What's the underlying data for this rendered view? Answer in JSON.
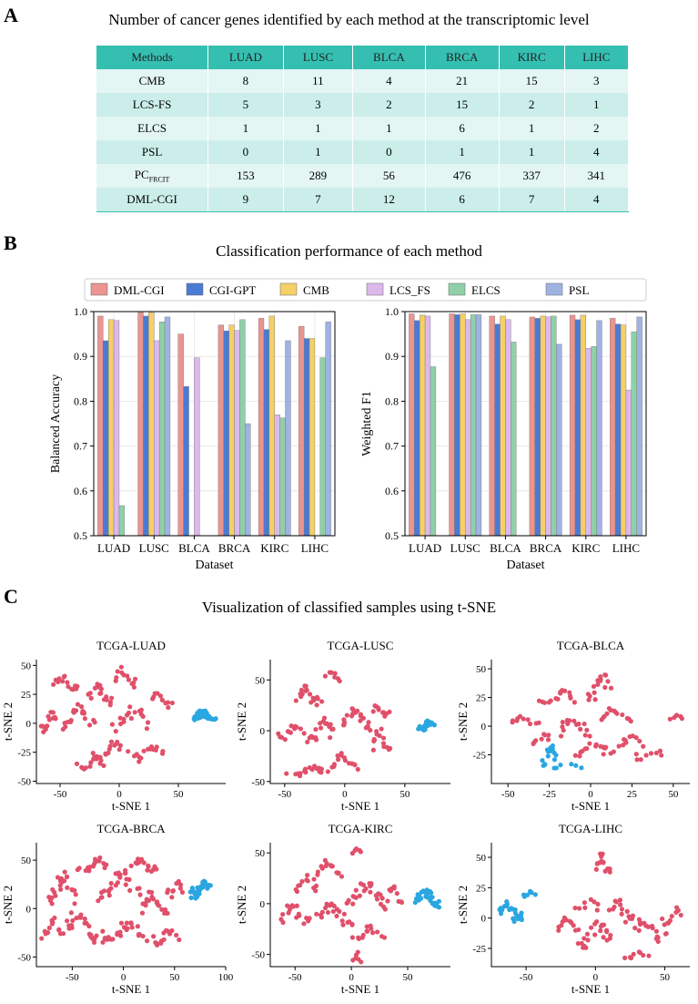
{
  "panels": {
    "a": "A",
    "b": "B",
    "c": "C"
  },
  "table": {
    "title": "Number of cancer genes identified by each method at the transcriptomic level",
    "headers": [
      "Methods",
      "LUAD",
      "LUSC",
      "BLCA",
      "BRCA",
      "KIRC",
      "LIHC"
    ],
    "rows": [
      {
        "method": "CMB",
        "values": [
          "8",
          "11",
          "4",
          "21",
          "15",
          "3"
        ]
      },
      {
        "method": "LCS-FS",
        "values": [
          "5",
          "3",
          "2",
          "15",
          "2",
          "1"
        ]
      },
      {
        "method": "ELCS",
        "values": [
          "1",
          "1",
          "1",
          "6",
          "1",
          "2"
        ]
      },
      {
        "method": "PSL",
        "values": [
          "0",
          "1",
          "0",
          "1",
          "1",
          "4"
        ]
      },
      {
        "method": "PC",
        "method_sub": "FRCIT",
        "values": [
          "153",
          "289",
          "56",
          "476",
          "337",
          "341"
        ]
      },
      {
        "method": "DML-CGI",
        "values": [
          "9",
          "7",
          "12",
          "6",
          "7",
          "4"
        ]
      }
    ]
  },
  "chart_data": [
    {
      "type": "bar",
      "title": "Classification performance of each method",
      "xlabel": "Dataset",
      "ylabel": "Balanced Accuracy",
      "ylim": [
        0.5,
        1.0
      ],
      "yticks": [
        "0.5",
        "0.6",
        "0.7",
        "0.8",
        "0.9",
        "1.0"
      ],
      "categories": [
        "LUAD",
        "LUSC",
        "BLCA",
        "BRCA",
        "KIRC",
        "LIHC"
      ],
      "legend_position": "top",
      "series": [
        {
          "name": "DML-CGI",
          "color": "#eb9490",
          "values": [
            0.99,
            0.998,
            0.95,
            0.97,
            0.985,
            0.967
          ]
        },
        {
          "name": "CGI-GPT",
          "color": "#4a7bd4",
          "values": [
            0.935,
            0.99,
            0.833,
            0.957,
            0.96,
            0.94
          ]
        },
        {
          "name": "CMB",
          "color": "#f5cf68",
          "values": [
            0.982,
            0.998,
            null,
            0.97,
            0.99,
            0.94
          ]
        },
        {
          "name": "LCS_FS",
          "color": "#dcb9ec",
          "values": [
            0.98,
            0.935,
            0.897,
            0.958,
            0.77,
            null
          ]
        },
        {
          "name": "ELCS",
          "color": "#8fd0a8",
          "values": [
            0.567,
            0.977,
            null,
            0.982,
            0.763,
            0.897
          ]
        },
        {
          "name": "PSL",
          "color": "#9fb3e3",
          "values": [
            null,
            0.988,
            null,
            0.75,
            0.935,
            0.977
          ]
        }
      ]
    },
    {
      "type": "bar",
      "xlabel": "Dataset",
      "ylabel": "Weighted F1",
      "ylim": [
        0.5,
        1.0
      ],
      "yticks": [
        "0.5",
        "0.6",
        "0.7",
        "0.8",
        "0.9",
        "1.0"
      ],
      "categories": [
        "LUAD",
        "LUSC",
        "BLCA",
        "BRCA",
        "KIRC",
        "LIHC"
      ],
      "series": [
        {
          "name": "DML-CGI",
          "color": "#eb9490",
          "values": [
            0.995,
            0.995,
            0.99,
            0.988,
            0.992,
            0.985
          ]
        },
        {
          "name": "CGI-GPT",
          "color": "#4a7bd4",
          "values": [
            0.98,
            0.993,
            0.972,
            0.985,
            0.982,
            0.972
          ]
        },
        {
          "name": "CMB",
          "color": "#f5cf68",
          "values": [
            0.992,
            0.995,
            0.99,
            0.99,
            0.992,
            0.97
          ]
        },
        {
          "name": "LCS_FS",
          "color": "#dcb9ec",
          "values": [
            0.99,
            0.982,
            0.982,
            0.988,
            0.918,
            0.825
          ]
        },
        {
          "name": "ELCS",
          "color": "#8fd0a8",
          "values": [
            0.877,
            0.993,
            0.932,
            0.99,
            0.922,
            0.955
          ]
        },
        {
          "name": "PSL",
          "color": "#9fb3e3",
          "values": [
            null,
            0.993,
            null,
            0.927,
            0.98,
            0.988
          ]
        }
      ]
    },
    {
      "type": "scatter",
      "title": "Visualization of classified samples using t-SNE",
      "plots": [
        {
          "title": "TCGA-LUAD",
          "xlabel": "t-SNE 1",
          "ylabel": "t-SNE 2",
          "xlim": [
            -70,
            90
          ],
          "ylim": [
            -52,
            55
          ],
          "xticks": [
            -50,
            0,
            50
          ],
          "yticks": [
            -50,
            -25,
            0,
            25,
            50
          ],
          "red_clusters": [
            [
              -60,
              0,
              6,
              12,
              14
            ],
            [
              -45,
              35,
              10,
              8,
              14
            ],
            [
              -35,
              5,
              12,
              15,
              20
            ],
            [
              -15,
              25,
              10,
              15,
              16
            ],
            [
              -10,
              -25,
              14,
              12,
              18
            ],
            [
              5,
              40,
              10,
              10,
              12
            ],
            [
              10,
              5,
              14,
              14,
              18
            ],
            [
              25,
              -25,
              12,
              10,
              14
            ],
            [
              35,
              20,
              8,
              10,
              10
            ],
            [
              -25,
              -35,
              10,
              8,
              10
            ]
          ],
          "blue_clusters": [
            [
              72,
              6,
              8,
              6,
              34
            ]
          ]
        },
        {
          "title": "TCGA-LUSC",
          "xlabel": "t-SNE 1",
          "ylabel": "t-SNE 2",
          "xlim": [
            -62,
            88
          ],
          "ylim": [
            -52,
            70
          ],
          "xticks": [
            -50,
            0,
            50
          ],
          "yticks": [
            -50,
            0,
            50
          ],
          "red_clusters": [
            [
              -45,
              0,
              10,
              10,
              14
            ],
            [
              -30,
              35,
              10,
              15,
              18
            ],
            [
              -20,
              0,
              10,
              15,
              18
            ],
            [
              -30,
              -40,
              15,
              6,
              18
            ],
            [
              0,
              -30,
              10,
              10,
              14
            ],
            [
              10,
              10,
              12,
              15,
              20
            ],
            [
              30,
              -10,
              8,
              15,
              14
            ],
            [
              30,
              20,
              8,
              8,
              10
            ],
            [
              -10,
              55,
              5,
              8,
              8
            ]
          ],
          "blue_clusters": [
            [
              68,
              5,
              6,
              6,
              24
            ]
          ]
        },
        {
          "title": "TCGA-BLCA",
          "xlabel": "t-SNE 1",
          "ylabel": "t-SNE 2",
          "xlim": [
            -60,
            60
          ],
          "ylim": [
            -50,
            58
          ],
          "xticks": [
            -50,
            -25,
            0,
            25,
            50
          ],
          "yticks": [
            -25,
            0,
            25,
            50
          ],
          "red_clusters": [
            [
              -40,
              5,
              8,
              6,
              10
            ],
            [
              -20,
              25,
              10,
              8,
              16
            ],
            [
              -10,
              0,
              10,
              10,
              16
            ],
            [
              0,
              -20,
              10,
              8,
              14
            ],
            [
              5,
              35,
              6,
              15,
              16
            ],
            [
              15,
              10,
              10,
              10,
              14
            ],
            [
              20,
              -15,
              10,
              10,
              14
            ],
            [
              35,
              -25,
              8,
              5,
              8
            ],
            [
              -30,
              -10,
              5,
              8,
              8
            ],
            [
              52,
              8,
              4,
              3,
              6
            ]
          ],
          "blue_clusters": [
            [
              -25,
              -25,
              4,
              12,
              14
            ],
            [
              -15,
              -35,
              8,
              3,
              6
            ]
          ]
        },
        {
          "title": "TCGA-BRCA",
          "xlabel": "t-SNE 1",
          "ylabel": "t-SNE 2",
          "xlim": [
            -85,
            100
          ],
          "ylim": [
            -60,
            68
          ],
          "xticks": [
            -50,
            0,
            50,
            100
          ],
          "yticks": [
            -50,
            0,
            50
          ],
          "red_clusters": [
            [
              -60,
              20,
              14,
              20,
              24
            ],
            [
              -40,
              -20,
              18,
              18,
              26
            ],
            [
              -30,
              45,
              12,
              10,
              16
            ],
            [
              -5,
              25,
              18,
              20,
              28
            ],
            [
              0,
              -25,
              20,
              15,
              26
            ],
            [
              20,
              45,
              12,
              10,
              16
            ],
            [
              30,
              5,
              12,
              15,
              18
            ],
            [
              40,
              -30,
              12,
              10,
              14
            ],
            [
              -70,
              -20,
              8,
              15,
              12
            ],
            [
              50,
              20,
              8,
              10,
              10
            ]
          ],
          "blue_clusters": [
            [
              75,
              20,
              10,
              12,
              30
            ]
          ]
        },
        {
          "title": "TCGA-KIRC",
          "xlabel": "t-SNE 1",
          "ylabel": "t-SNE 2",
          "xlim": [
            -72,
            88
          ],
          "ylim": [
            -62,
            60
          ],
          "xticks": [
            -50,
            0,
            50
          ],
          "yticks": [
            -50,
            0,
            50
          ],
          "red_clusters": [
            [
              -50,
              -10,
              12,
              15,
              18
            ],
            [
              -40,
              20,
              10,
              10,
              12
            ],
            [
              -20,
              35,
              10,
              10,
              14
            ],
            [
              -15,
              -10,
              15,
              15,
              22
            ],
            [
              10,
              10,
              15,
              15,
              22
            ],
            [
              15,
              -30,
              12,
              10,
              14
            ],
            [
              35,
              5,
              10,
              15,
              14
            ],
            [
              5,
              -52,
              3,
              6,
              6
            ],
            [
              5,
              52,
              4,
              3,
              5
            ]
          ],
          "blue_clusters": [
            [
              68,
              5,
              10,
              10,
              30
            ]
          ]
        },
        {
          "title": "TCGA-LIHC",
          "xlabel": "t-SNE 1",
          "ylabel": "t-SNE 2",
          "xlim": [
            -75,
            68
          ],
          "ylim": [
            -40,
            62
          ],
          "xticks": [
            -50,
            0,
            50
          ],
          "yticks": [
            -25,
            0,
            25,
            50
          ],
          "red_clusters": [
            [
              5,
              45,
              5,
              10,
              14
            ],
            [
              -20,
              -5,
              8,
              8,
              12
            ],
            [
              0,
              -15,
              12,
              15,
              22
            ],
            [
              20,
              5,
              10,
              12,
              16
            ],
            [
              40,
              -10,
              10,
              12,
              16
            ],
            [
              55,
              0,
              6,
              10,
              10
            ],
            [
              -5,
              10,
              8,
              6,
              8
            ],
            [
              30,
              -30,
              8,
              5,
              8
            ]
          ],
          "blue_clusters": [
            [
              -60,
              5,
              8,
              10,
              24
            ],
            [
              -48,
              20,
              4,
              3,
              6
            ]
          ]
        }
      ]
    }
  ]
}
